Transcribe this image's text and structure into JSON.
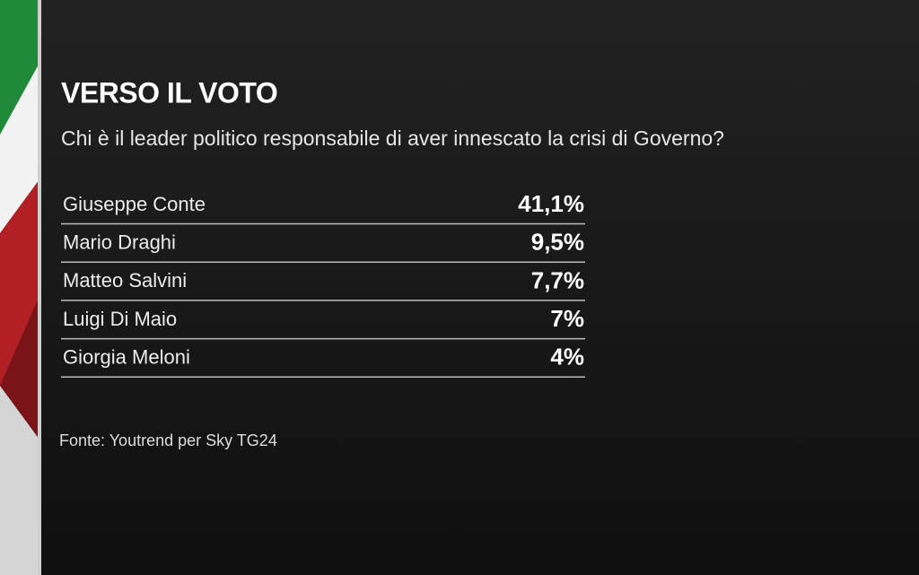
{
  "header": {
    "title": "VERSO IL VOTO",
    "subtitle": "Chi è il leader politico responsabile di aver innescato la crisi di Governo?"
  },
  "table": {
    "rows": [
      [
        "Giuseppe Conte",
        "41,1%"
      ],
      [
        "Mario Draghi",
        "9,5%"
      ],
      [
        "Matteo Salvini",
        "7,7%"
      ],
      [
        "Luigi Di Maio",
        "7%"
      ],
      [
        "Giorgia Meloni",
        "4%"
      ]
    ]
  },
  "footer": {
    "source": "Fonte: Youtrend per Sky TG24"
  }
}
